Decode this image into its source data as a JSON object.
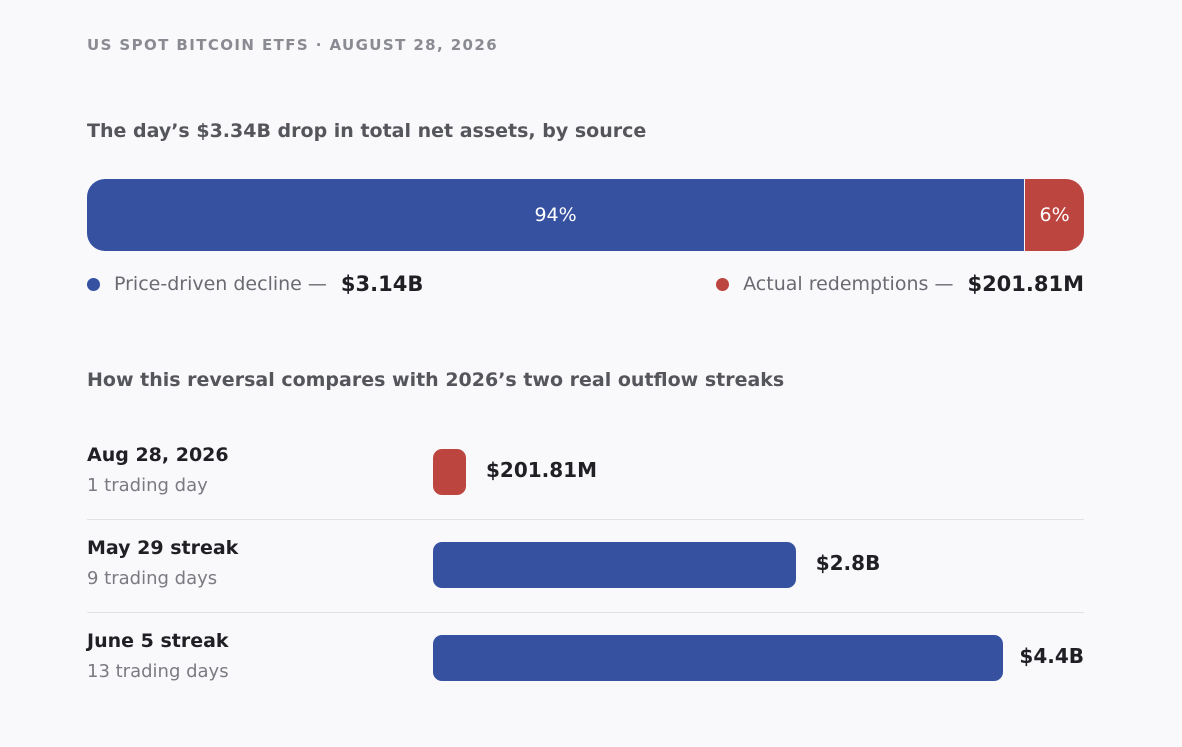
{
  "kicker": "US SPOT BITCOIN ETFS · AUGUST 28, 2026",
  "section1_title": "The day’s $3.34B drop in total net assets, by source",
  "section2_title": "How this reversal compares with 2026’s two real outflow streaks",
  "colors": {
    "blue": "#3551a0",
    "red": "#bd4540"
  },
  "chart_data": [
    {
      "type": "bar",
      "orientation": "horizontal-stacked",
      "title": "The day’s $3.34B drop in total net assets, by source",
      "series": [
        {
          "name": "Price-driven decline",
          "percent": 94,
          "percent_label": "94%",
          "value_label": "$3.14B",
          "value_billions": 3.14,
          "color": "#3551a0"
        },
        {
          "name": "Actual redemptions",
          "percent": 6,
          "percent_label": "6%",
          "value_label": "$201.81M",
          "value_billions": 0.20181,
          "color": "#bd4540"
        }
      ],
      "legend_separator": "—"
    },
    {
      "type": "bar",
      "orientation": "horizontal",
      "title": "How this reversal compares with 2026’s two real outflow streaks",
      "xlim": [
        0,
        4.4
      ],
      "rows": [
        {
          "label": "Aug 28, 2026",
          "sublabel": "1 trading day",
          "value_billions": 0.20181,
          "value_label": "$201.81M",
          "color": "#bd4540"
        },
        {
          "label": "May 29 streak",
          "sublabel": "9 trading days",
          "value_billions": 2.8,
          "value_label": "$2.8B",
          "color": "#3551a0"
        },
        {
          "label": "June 5 streak",
          "sublabel": "13 trading days",
          "value_billions": 4.4,
          "value_label": "$4.4B",
          "color": "#3551a0"
        }
      ]
    }
  ]
}
